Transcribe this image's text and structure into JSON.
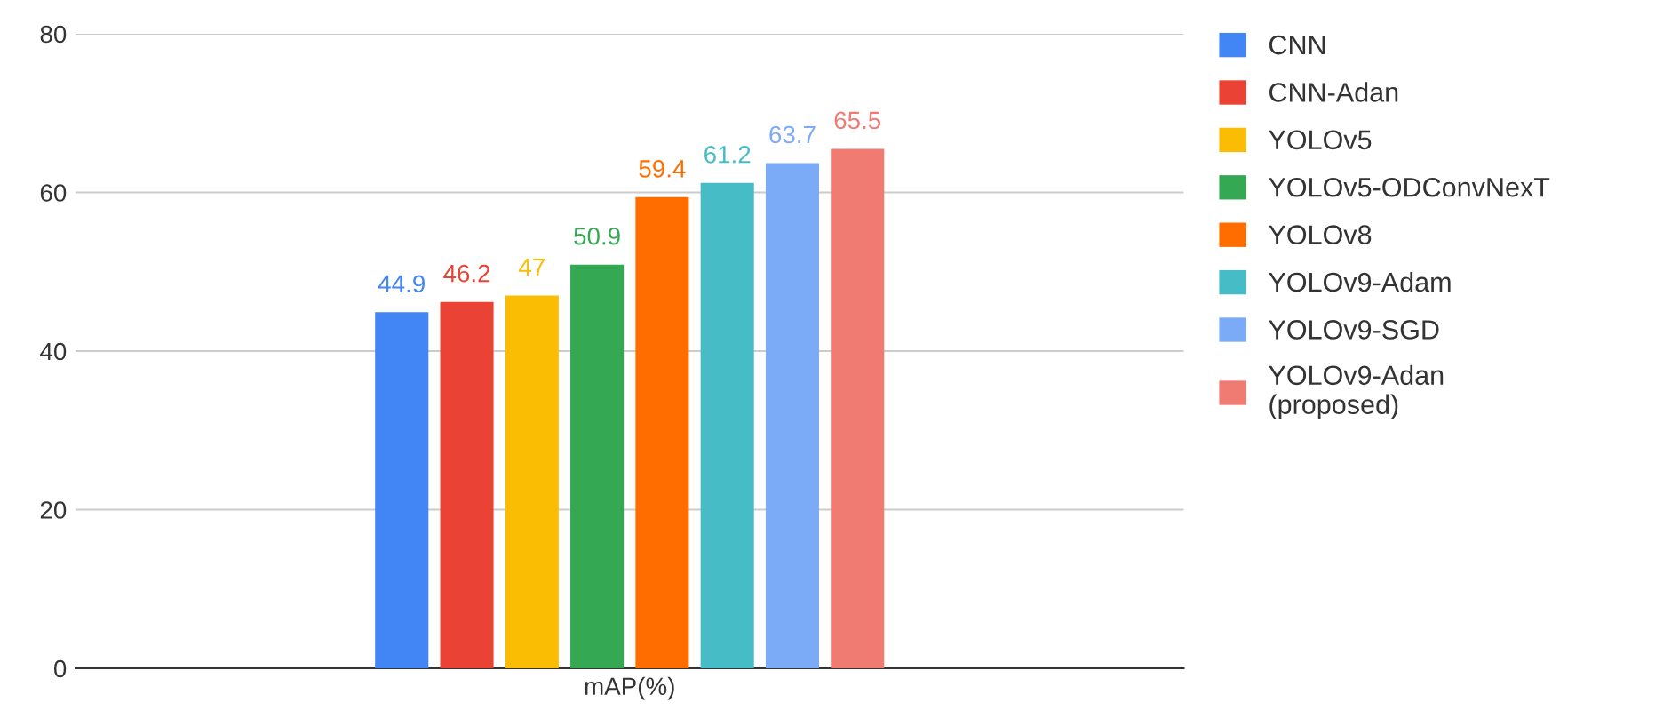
{
  "chart_data": {
    "type": "bar",
    "categories": [
      "mAP(%)"
    ],
    "series": [
      {
        "name": "CNN",
        "color": "#4285f4",
        "values": [
          44.9
        ]
      },
      {
        "name": "CNN-Adan",
        "color": "#ea4335",
        "values": [
          46.2
        ]
      },
      {
        "name": "YOLOv5",
        "color": "#fbbc04",
        "values": [
          47
        ]
      },
      {
        "name": "YOLOv5-ODConvNexT",
        "color": "#34a853",
        "values": [
          50.9
        ]
      },
      {
        "name": "YOLOv8",
        "color": "#ff6d01",
        "values": [
          59.4
        ]
      },
      {
        "name": "YOLOv9-Adam",
        "color": "#46bdc6",
        "values": [
          61.2
        ]
      },
      {
        "name": "YOLOv9-SGD",
        "color": "#7baaf7",
        "values": [
          63.7
        ]
      },
      {
        "name": "YOLOv9-Adan\n(proposed)",
        "color": "#f07b72",
        "values": [
          65.5
        ]
      }
    ],
    "ylim": [
      0,
      80
    ],
    "yticks": [
      0,
      20,
      40,
      60,
      80
    ],
    "grid": "y",
    "legend": "right",
    "data_labels": true
  }
}
